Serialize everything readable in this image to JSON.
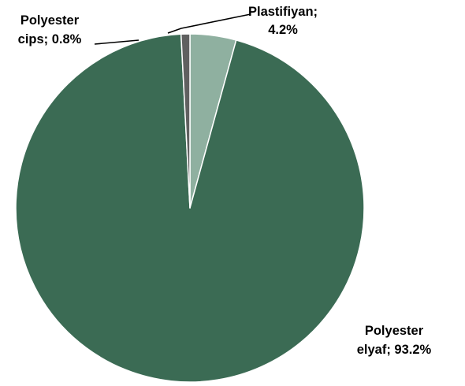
{
  "chart_data": {
    "type": "pie",
    "start_angle_deg": 0,
    "direction": "clockwise",
    "slices": [
      {
        "label_line1": "Plastifiyan;",
        "label_line2": "4.2%",
        "value": 4.2,
        "color": "#8fb0a0"
      },
      {
        "label_line1": "Polyester",
        "label_line2": "elyaf; 93.2%",
        "value": 93.2,
        "color": "#3b6b54"
      },
      {
        "label_line1": "Polyester",
        "label_line2": "cips; 0.8%",
        "value": 0.8,
        "color": "#606060"
      }
    ],
    "legend": "none"
  }
}
